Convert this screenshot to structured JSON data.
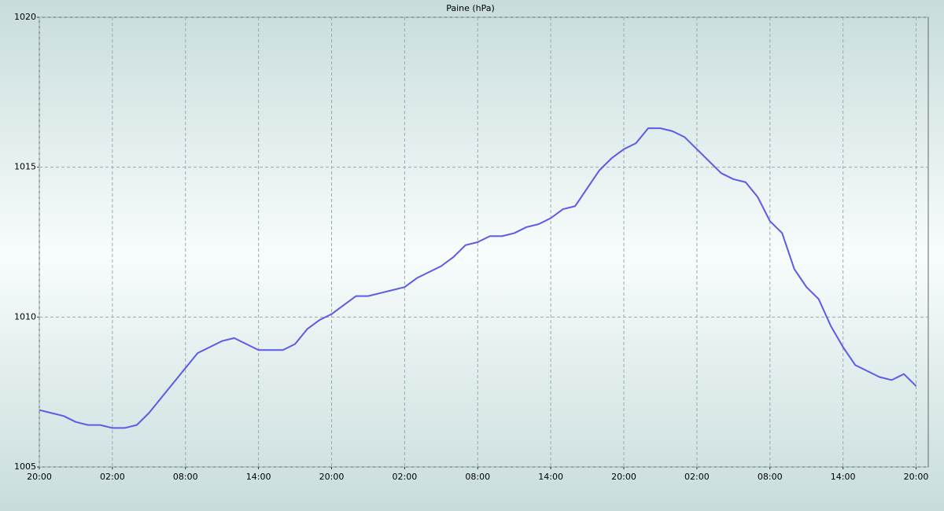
{
  "chart_data": {
    "type": "line",
    "title": "Paine (hPa)",
    "x": [
      0,
      1,
      2,
      3,
      4,
      5,
      6,
      7,
      8,
      9,
      10,
      11,
      12,
      13,
      14,
      15,
      16,
      17,
      18,
      19,
      20,
      21,
      22,
      23,
      24,
      25,
      26,
      27,
      28,
      29,
      30,
      31,
      32,
      33,
      34,
      35,
      36,
      37,
      38,
      39,
      40,
      41,
      42,
      43,
      44,
      45,
      46,
      47,
      48,
      49,
      50,
      51,
      52,
      53,
      54,
      55,
      56,
      57,
      58,
      59,
      60,
      61,
      62,
      63,
      64,
      65,
      66,
      67,
      68,
      69,
      70,
      71,
      72
    ],
    "series": [
      {
        "color": "#5b5be6",
        "values": [
          1006.9,
          1006.8,
          1006.7,
          1006.5,
          1006.4,
          1006.4,
          1006.3,
          1006.3,
          1006.4,
          1006.8,
          1007.3,
          1007.8,
          1008.3,
          1008.8,
          1009.0,
          1009.2,
          1009.3,
          1009.1,
          1008.9,
          1008.9,
          1008.9,
          1009.1,
          1009.6,
          1009.9,
          1010.1,
          1010.4,
          1010.7,
          1010.7,
          1010.8,
          1010.9,
          1011.0,
          1011.3,
          1011.5,
          1011.7,
          1012.0,
          1012.4,
          1012.5,
          1012.7,
          1012.7,
          1012.8,
          1013.0,
          1013.1,
          1013.3,
          1013.6,
          1013.7,
          1014.3,
          1014.9,
          1015.3,
          1015.6,
          1015.8,
          1016.3,
          1016.3,
          1016.2,
          1016.0,
          1015.6,
          1015.2,
          1014.8,
          1014.6,
          1014.5,
          1014.0,
          1013.2,
          1012.8,
          1011.6,
          1011.0,
          1010.6,
          1009.7,
          1009.0,
          1008.4,
          1008.2,
          1008.0,
          1007.9,
          1008.1,
          1007.7
        ]
      }
    ],
    "xlim": [
      0,
      73
    ],
    "xticks": [
      {
        "value": 0,
        "label": "20:00"
      },
      {
        "value": 6,
        "label": "02:00"
      },
      {
        "value": 12,
        "label": "08:00"
      },
      {
        "value": 18,
        "label": "14:00"
      },
      {
        "value": 24,
        "label": "20:00"
      },
      {
        "value": 30,
        "label": "02:00"
      },
      {
        "value": 36,
        "label": "08:00"
      },
      {
        "value": 42,
        "label": "14:00"
      },
      {
        "value": 48,
        "label": "20:00"
      },
      {
        "value": 54,
        "label": "02:00"
      },
      {
        "value": 60,
        "label": "08:00"
      },
      {
        "value": 66,
        "label": "14:00"
      },
      {
        "value": 72,
        "label": "20:00"
      }
    ],
    "ylim": [
      1005,
      1020
    ],
    "yticks": [
      1005,
      1010,
      1015,
      1020
    ],
    "grid": true
  }
}
